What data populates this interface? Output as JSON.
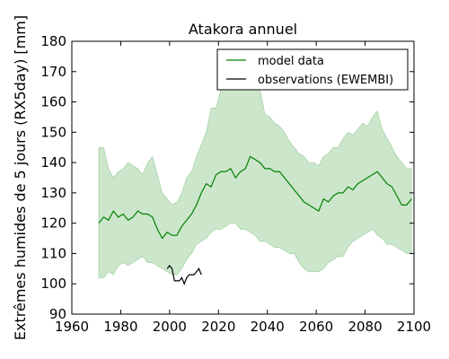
{
  "chart_data": {
    "type": "line",
    "title": "Atakora annuel",
    "xlabel": "",
    "ylabel": "Extrêmes humides de 5 jours (RX5day) [mm]",
    "xlim": [
      1960,
      2100
    ],
    "ylim": [
      90,
      180
    ],
    "xticks": [
      "1960",
      "1980",
      "2000",
      "2020",
      "2040",
      "2060",
      "2080",
      "2100"
    ],
    "yticks": [
      "90",
      "100",
      "110",
      "120",
      "130",
      "140",
      "150",
      "160",
      "170",
      "180"
    ],
    "legend": {
      "placement": "top-right",
      "entries": [
        "model data",
        "observations (EWEMBI)"
      ]
    },
    "grid": false,
    "series": [
      {
        "name": "model data",
        "color": "#008000",
        "x": [
          1971,
          1973,
          1975,
          1977,
          1979,
          1981,
          1983,
          1985,
          1987,
          1989,
          1991,
          1993,
          1995,
          1997,
          1999,
          2001,
          2003,
          2005,
          2007,
          2009,
          2011,
          2013,
          2015,
          2017,
          2019,
          2021,
          2023,
          2025,
          2027,
          2029,
          2031,
          2033,
          2035,
          2037,
          2039,
          2041,
          2043,
          2045,
          2047,
          2049,
          2051,
          2053,
          2055,
          2057,
          2059,
          2061,
          2063,
          2065,
          2067,
          2069,
          2071,
          2073,
          2075,
          2077,
          2079,
          2081,
          2083,
          2085,
          2087,
          2089,
          2091,
          2093,
          2095,
          2097,
          2099
        ],
        "values": [
          120,
          122,
          121,
          124,
          122,
          123,
          121,
          122,
          124,
          123,
          123,
          122,
          118,
          115,
          117,
          116,
          116,
          119,
          121,
          123,
          126,
          130,
          133,
          132,
          136,
          137,
          137,
          138,
          135,
          137,
          138,
          142,
          141,
          140,
          138,
          138,
          137,
          137,
          135,
          133,
          131,
          129,
          127,
          126,
          125,
          124,
          128,
          127,
          129,
          130,
          130,
          132,
          131,
          133,
          134,
          135,
          136,
          137,
          135,
          133,
          132,
          129,
          126,
          126,
          128
        ],
        "band_upper": [
          145,
          145,
          138,
          135,
          137,
          138,
          140,
          139,
          138,
          136,
          140,
          142,
          136,
          130,
          128,
          126,
          127,
          130,
          135,
          137,
          142,
          146,
          150,
          158,
          158,
          164,
          168,
          168,
          172,
          168,
          170,
          172,
          170,
          164,
          156,
          155,
          153,
          152,
          150,
          147,
          145,
          143,
          142,
          140,
          140,
          139,
          142,
          143,
          145,
          145,
          148,
          150,
          149,
          151,
          153,
          152,
          155,
          157,
          151,
          148,
          145,
          142,
          140,
          138,
          138
        ],
        "band_lower": [
          102,
          102,
          104,
          103,
          106,
          107,
          106,
          107,
          108,
          109,
          107,
          107,
          106,
          105,
          104,
          103,
          103,
          105,
          108,
          110,
          113,
          114,
          115,
          117,
          118,
          118,
          119,
          120,
          120,
          118,
          118,
          117,
          116,
          114,
          114,
          113,
          112,
          112,
          111,
          110,
          110,
          107,
          105,
          104,
          104,
          104,
          105,
          107,
          108,
          109,
          109,
          112,
          114,
          115,
          116,
          117,
          118,
          116,
          115,
          113,
          113,
          112,
          111,
          110,
          110
        ]
      },
      {
        "name": "observations (EWEMBI)",
        "color": "#000000",
        "x": [
          1999,
          2000,
          2001,
          2002,
          2003,
          2004,
          2005,
          2006,
          2007,
          2008,
          2009,
          2010,
          2011,
          2012,
          2013
        ],
        "values": [
          105,
          106,
          105,
          101,
          101,
          101,
          102,
          100,
          102,
          103,
          103,
          103,
          104,
          105,
          103
        ]
      }
    ]
  }
}
